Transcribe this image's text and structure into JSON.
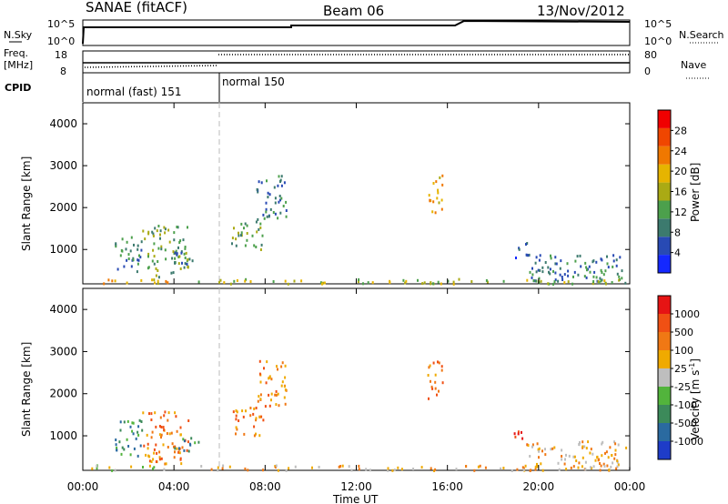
{
  "header": {
    "station": "SANAE (fitACF)",
    "beam": "Beam 06",
    "date": "13/Nov/2012"
  },
  "top_panels": {
    "nsky_label": "N.Sky",
    "nsky_ticks": [
      "10^5",
      "10^0"
    ],
    "nsearch_label": "N.Search",
    "nsearch_ticks": [
      "10^5",
      "10^0"
    ],
    "freq_label_line1": "Freq.",
    "freq_label_line2": "[MHz]",
    "freq_ticks": [
      "18",
      "8"
    ],
    "nave_label": "Nave",
    "nave_ticks": [
      "80",
      "0"
    ],
    "cpid_label": "CPID",
    "cpid_segments": [
      {
        "name": "normal (fast) 151",
        "start_hour": 0,
        "end_hour": 6
      },
      {
        "name": "normal 150",
        "start_hour": 6,
        "end_hour": 24
      }
    ]
  },
  "power_colorbar": {
    "label": "Power [dB]",
    "ticks": [
      "28",
      "24",
      "20",
      "16",
      "12",
      "8",
      "4"
    ],
    "colors": [
      "#1428ff",
      "#284ab4",
      "#3c7a6e",
      "#4ca04c",
      "#aaaa14",
      "#e6b400",
      "#f07800",
      "#f04600",
      "#f00000"
    ]
  },
  "velocity_colorbar": {
    "label": "Velocity [m s^-1]",
    "ticks": [
      "1000",
      "500",
      "100",
      "25",
      "-25",
      "-100",
      "-500",
      "-1000"
    ],
    "colors": [
      "#1e3cc8",
      "#2a6aa0",
      "#3c8a5a",
      "#52b43c",
      "#bebebe",
      "#f0aa00",
      "#f07814",
      "#f05014",
      "#e61414"
    ]
  },
  "x_ticks": [
    "00:00",
    "04:00",
    "08:00",
    "12:00",
    "16:00",
    "20:00",
    "00:00"
  ],
  "x_label": "Time UT",
  "y_label": "Slant Range [km]",
  "y_ticks": [
    "1000",
    "2000",
    "3000",
    "4000"
  ],
  "chart_data": [
    {
      "type": "heatmap",
      "panel": "power",
      "xlim_hours": [
        0,
        24
      ],
      "ylim_km": [
        180,
        4500
      ],
      "ylabel": "Slant Range [km]",
      "xlabel": "",
      "colorbar_label": "Power [dB]",
      "colorbar_range": [
        0,
        30
      ],
      "scatter_patches": [
        {
          "t0": 0.3,
          "t1": 3.7,
          "r0": 200,
          "r1": 330,
          "level": 5
        },
        {
          "t0": 1.4,
          "t1": 2.6,
          "r0": 500,
          "r1": 1400,
          "level": 2
        },
        {
          "t0": 2.6,
          "t1": 4.6,
          "r0": 350,
          "r1": 1600,
          "level": 3
        },
        {
          "t0": 4.0,
          "t1": 5.1,
          "r0": 650,
          "r1": 1000,
          "level": 2
        },
        {
          "t0": 6.5,
          "t1": 7.9,
          "r0": 1000,
          "r1": 1700,
          "level": 3
        },
        {
          "t0": 7.6,
          "t1": 8.9,
          "r0": 1700,
          "r1": 2800,
          "level": 2
        },
        {
          "t0": 15.1,
          "t1": 15.8,
          "r0": 1900,
          "r1": 2800,
          "level": 5
        },
        {
          "t0": 18.9,
          "t1": 19.5,
          "r0": 800,
          "r1": 1200,
          "level": 1
        },
        {
          "t0": 19.5,
          "t1": 23.9,
          "r0": 200,
          "r1": 900,
          "level": 2
        },
        {
          "t0": 5.0,
          "t1": 24.0,
          "r0": 200,
          "r1": 320,
          "level": 4
        }
      ]
    },
    {
      "type": "heatmap",
      "panel": "velocity",
      "xlim_hours": [
        0,
        24
      ],
      "ylim_km": [
        180,
        4500
      ],
      "ylabel": "Slant Range [km]",
      "xlabel": "Time UT",
      "colorbar_label": "Velocity [m s^-1]",
      "colorbar_range": [
        -1000,
        1000
      ],
      "scatter_patches": [
        {
          "t0": 0.3,
          "t1": 3.7,
          "r0": 200,
          "r1": 330,
          "level": 4
        },
        {
          "t0": 1.4,
          "t1": 2.6,
          "r0": 500,
          "r1": 1400,
          "level": 2
        },
        {
          "t0": 2.6,
          "t1": 4.6,
          "r0": 350,
          "r1": 1600,
          "level": 6
        },
        {
          "t0": 4.0,
          "t1": 5.1,
          "r0": 650,
          "r1": 1000,
          "level": 2
        },
        {
          "t0": 6.5,
          "t1": 7.9,
          "r0": 1000,
          "r1": 1700,
          "level": 6
        },
        {
          "t0": 7.6,
          "t1": 8.9,
          "r0": 1700,
          "r1": 2800,
          "level": 6
        },
        {
          "t0": 15.1,
          "t1": 15.8,
          "r0": 1900,
          "r1": 2800,
          "level": 6
        },
        {
          "t0": 18.9,
          "t1": 19.5,
          "r0": 800,
          "r1": 1200,
          "level": 8
        },
        {
          "t0": 19.5,
          "t1": 23.9,
          "r0": 200,
          "r1": 900,
          "level": 5
        },
        {
          "t0": 5.0,
          "t1": 24.0,
          "r0": 200,
          "r1": 320,
          "level": 5
        }
      ]
    }
  ]
}
